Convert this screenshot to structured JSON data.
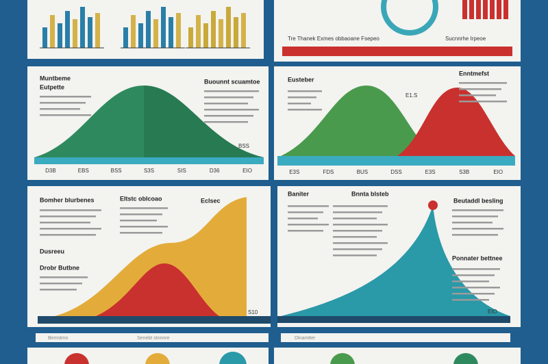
{
  "top_caption": "Tre Thanek Exmes obbaoane Fsepeo",
  "top_right_caption": "Sucnnrhe Irpeoe",
  "panels": [
    {
      "title": "Muntbeme",
      "subtitle": "Eutpette",
      "heading": "Buounnt scuamtoe",
      "note": "BSS",
      "axis": [
        "D3B",
        "EBS",
        "BSS",
        "S3S",
        "SIS",
        "D36",
        "EIO"
      ]
    },
    {
      "title": "Eusteber",
      "heading": "Enntmefst",
      "note": "E1.S",
      "axis": [
        "E3S",
        "FDS",
        "BUS",
        "DSS",
        "E3S",
        "S3B",
        "EIO"
      ]
    },
    {
      "title": "Bomher blurbenes",
      "subtitle": "Dusreeu",
      "heading": "Drobr Butbne",
      "label": "Eltstc oblcoao",
      "badge": "Eclsec",
      "note": "S10"
    },
    {
      "title": "Baniter",
      "heading": "Bnnta blsteb",
      "label": "Beutaddl besling",
      "subtitle": "Ponnater bettnee",
      "note": "EIO"
    }
  ],
  "footer": [
    "Bemstmn",
    "Senebt stnnnre",
    "Dlnamtter"
  ]
}
